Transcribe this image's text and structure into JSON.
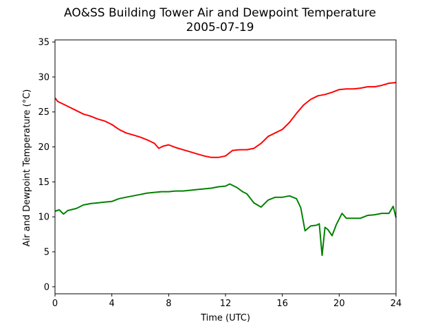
{
  "chart_data": {
    "type": "line",
    "title": "AO&SS Building Tower Air and Dewpoint Temperature",
    "subtitle": "2005-07-19",
    "xlabel": "Time (UTC)",
    "ylabel": "Air and Dewpoint Temperature (°C)",
    "xlim": [
      0,
      24
    ],
    "ylim": [
      -1,
      35.3
    ],
    "xticks": [
      0,
      4,
      8,
      12,
      16,
      20,
      24
    ],
    "xtick_labels": [
      "0",
      "4",
      "8",
      "12",
      "16",
      "20",
      "24"
    ],
    "yticks": [
      0,
      5,
      10,
      15,
      20,
      25,
      30,
      35
    ],
    "ytick_labels": [
      "0",
      "5",
      "10",
      "15",
      "20",
      "25",
      "30",
      "35"
    ],
    "grid": false,
    "series": [
      {
        "color": "#ff0000",
        "x": [
          0,
          0.2,
          0.5,
          1,
          1.5,
          2,
          2.5,
          3,
          3.5,
          4,
          4.5,
          5,
          5.5,
          6,
          6.5,
          7,
          7.3,
          7.6,
          8,
          8.5,
          9,
          9.5,
          10,
          10.5,
          11,
          11.5,
          12,
          12.5,
          13,
          13.5,
          14,
          14.5,
          15,
          15.5,
          16,
          16.5,
          17,
          17.5,
          18,
          18.5,
          19,
          19.5,
          20,
          20.5,
          21,
          21.5,
          22,
          22.5,
          23,
          23.5,
          24
        ],
        "y": [
          27,
          26.5,
          26.2,
          25.7,
          25.2,
          24.7,
          24.4,
          24.0,
          23.7,
          23.2,
          22.5,
          22.0,
          21.7,
          21.4,
          21.0,
          20.5,
          19.8,
          20.1,
          20.3,
          19.9,
          19.6,
          19.3,
          19.0,
          18.7,
          18.5,
          18.5,
          18.7,
          19.5,
          19.6,
          19.6,
          19.8,
          20.5,
          21.5,
          22.0,
          22.5,
          23.5,
          24.8,
          26.0,
          26.8,
          27.3,
          27.5,
          27.8,
          28.2,
          28.3,
          28.3,
          28.4,
          28.6,
          28.6,
          28.8,
          29.1,
          29.2
        ]
      },
      {
        "color": "#008000",
        "x": [
          0,
          0.3,
          0.6,
          0.9,
          1.5,
          2,
          2.5,
          3,
          3.5,
          4,
          4.5,
          5,
          5.5,
          6,
          6.5,
          7,
          7.5,
          8,
          8.5,
          9,
          9.5,
          10,
          10.5,
          11,
          11.5,
          12,
          12.3,
          12.8,
          13.2,
          13.5,
          14,
          14.5,
          15,
          15.5,
          16,
          16.5,
          17,
          17.3,
          17.6,
          18,
          18.4,
          18.6,
          18.8,
          19.0,
          19.2,
          19.5,
          19.8,
          20.2,
          20.5,
          21,
          21.5,
          22,
          22.5,
          23,
          23.5,
          23.8,
          24
        ],
        "y": [
          10.8,
          11.0,
          10.4,
          10.9,
          11.2,
          11.7,
          11.9,
          12.0,
          12.1,
          12.2,
          12.6,
          12.8,
          13.0,
          13.2,
          13.4,
          13.5,
          13.6,
          13.6,
          13.7,
          13.7,
          13.8,
          13.9,
          14.0,
          14.1,
          14.3,
          14.4,
          14.7,
          14.2,
          13.6,
          13.3,
          12.0,
          11.4,
          12.4,
          12.8,
          12.8,
          13.0,
          12.6,
          11.3,
          8.0,
          8.7,
          8.8,
          9.0,
          4.5,
          8.5,
          8.2,
          7.3,
          8.9,
          10.5,
          9.8,
          9.8,
          9.8,
          10.2,
          10.3,
          10.5,
          10.5,
          11.5,
          9.9
        ]
      }
    ]
  }
}
